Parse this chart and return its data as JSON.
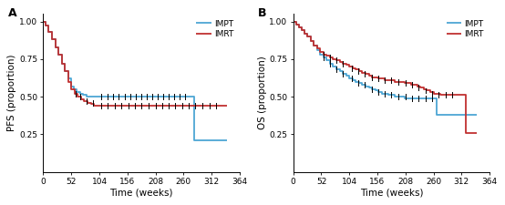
{
  "panel_A": {
    "title": "A",
    "ylabel": "PFS (proportion)",
    "xlabel": "Time (weeks)",
    "xlim": [
      0,
      364
    ],
    "ylim": [
      0.0,
      1.05
    ],
    "yticks": [
      0.25,
      0.5,
      0.75,
      1.0
    ],
    "xticks": [
      0,
      52,
      104,
      156,
      208,
      260,
      312,
      364
    ],
    "IMPT": {
      "color": "#4DA6D4",
      "steps_x": [
        0,
        5,
        10,
        16,
        22,
        28,
        34,
        40,
        46,
        52,
        56,
        62,
        68,
        74,
        80,
        86,
        92,
        98,
        104,
        280,
        340
      ],
      "steps_y": [
        1.0,
        0.97,
        0.93,
        0.88,
        0.83,
        0.78,
        0.72,
        0.67,
        0.62,
        0.57,
        0.55,
        0.53,
        0.52,
        0.51,
        0.5,
        0.5,
        0.5,
        0.5,
        0.5,
        0.21,
        0.21
      ],
      "censors_x": [
        108,
        120,
        130,
        140,
        152,
        162,
        172,
        182,
        192,
        202,
        212,
        222,
        232,
        242,
        252,
        262
      ],
      "censors_y": [
        0.5,
        0.5,
        0.5,
        0.5,
        0.5,
        0.5,
        0.5,
        0.5,
        0.5,
        0.5,
        0.5,
        0.5,
        0.5,
        0.5,
        0.5,
        0.5
      ]
    },
    "IMRT": {
      "color": "#C03030",
      "steps_x": [
        0,
        5,
        10,
        16,
        22,
        28,
        34,
        40,
        46,
        52,
        58,
        64,
        70,
        76,
        82,
        88,
        94,
        100,
        106,
        340
      ],
      "steps_y": [
        1.0,
        0.97,
        0.93,
        0.88,
        0.83,
        0.78,
        0.72,
        0.67,
        0.6,
        0.55,
        0.52,
        0.5,
        0.48,
        0.47,
        0.46,
        0.45,
        0.44,
        0.44,
        0.44,
        0.44
      ],
      "censors_x": [
        60,
        68,
        80,
        92,
        108,
        120,
        132,
        145,
        158,
        170,
        182,
        195,
        208,
        220,
        232,
        245,
        258,
        270,
        282,
        295,
        308,
        320
      ],
      "censors_y": [
        0.52,
        0.5,
        0.47,
        0.46,
        0.44,
        0.44,
        0.44,
        0.44,
        0.44,
        0.44,
        0.44,
        0.44,
        0.44,
        0.44,
        0.44,
        0.44,
        0.44,
        0.44,
        0.44,
        0.44,
        0.44,
        0.44
      ]
    }
  },
  "panel_B": {
    "title": "B",
    "ylabel": "OS (proportion)",
    "xlabel": "Time (weeks)",
    "xlim": [
      0,
      364
    ],
    "ylim": [
      0.0,
      1.05
    ],
    "yticks": [
      0.25,
      0.5,
      0.75,
      1.0
    ],
    "xticks": [
      0,
      52,
      104,
      156,
      208,
      260,
      312,
      364
    ],
    "IMPT": {
      "color": "#4DA6D4",
      "steps_x": [
        0,
        5,
        10,
        15,
        20,
        26,
        32,
        38,
        44,
        50,
        56,
        62,
        68,
        74,
        80,
        86,
        92,
        98,
        104,
        110,
        116,
        122,
        128,
        134,
        140,
        146,
        152,
        158,
        164,
        170,
        176,
        182,
        188,
        194,
        200,
        206,
        212,
        218,
        224,
        230,
        236,
        242,
        248,
        254,
        260,
        266,
        272,
        340
      ],
      "steps_y": [
        1.0,
        0.98,
        0.96,
        0.94,
        0.92,
        0.9,
        0.87,
        0.84,
        0.81,
        0.78,
        0.76,
        0.74,
        0.72,
        0.7,
        0.68,
        0.67,
        0.65,
        0.64,
        0.62,
        0.61,
        0.6,
        0.59,
        0.58,
        0.57,
        0.56,
        0.55,
        0.54,
        0.53,
        0.52,
        0.52,
        0.51,
        0.51,
        0.5,
        0.5,
        0.5,
        0.49,
        0.49,
        0.49,
        0.49,
        0.49,
        0.49,
        0.49,
        0.49,
        0.49,
        0.49,
        0.38,
        0.38,
        0.38
      ],
      "censors_x": [
        56,
        68,
        80,
        92,
        108,
        120,
        132,
        145,
        158,
        170,
        182,
        195,
        208,
        220,
        232,
        245,
        258
      ],
      "censors_y": [
        0.76,
        0.72,
        0.68,
        0.65,
        0.62,
        0.59,
        0.58,
        0.55,
        0.53,
        0.52,
        0.51,
        0.5,
        0.5,
        0.49,
        0.49,
        0.49,
        0.49
      ]
    },
    "IMRT": {
      "color": "#C03030",
      "steps_x": [
        0,
        5,
        10,
        15,
        20,
        26,
        32,
        38,
        44,
        50,
        56,
        62,
        68,
        74,
        80,
        86,
        92,
        98,
        104,
        110,
        116,
        122,
        128,
        134,
        140,
        146,
        152,
        158,
        164,
        170,
        176,
        182,
        188,
        194,
        200,
        206,
        212,
        218,
        224,
        230,
        236,
        242,
        248,
        254,
        260,
        266,
        272,
        278,
        284,
        290,
        296,
        302,
        308,
        314,
        320,
        340
      ],
      "steps_y": [
        1.0,
        0.98,
        0.96,
        0.94,
        0.92,
        0.9,
        0.87,
        0.84,
        0.82,
        0.8,
        0.78,
        0.77,
        0.76,
        0.75,
        0.74,
        0.73,
        0.72,
        0.71,
        0.7,
        0.69,
        0.68,
        0.67,
        0.66,
        0.65,
        0.64,
        0.63,
        0.63,
        0.62,
        0.62,
        0.61,
        0.61,
        0.61,
        0.6,
        0.6,
        0.6,
        0.59,
        0.59,
        0.58,
        0.58,
        0.57,
        0.56,
        0.55,
        0.54,
        0.53,
        0.52,
        0.52,
        0.51,
        0.51,
        0.51,
        0.51,
        0.51,
        0.51,
        0.51,
        0.51,
        0.26,
        0.26
      ],
      "censors_x": [
        56,
        68,
        80,
        92,
        108,
        120,
        132,
        145,
        158,
        170,
        182,
        195,
        208,
        220,
        232,
        245,
        258,
        270,
        282,
        295
      ],
      "censors_y": [
        0.78,
        0.76,
        0.74,
        0.72,
        0.69,
        0.67,
        0.65,
        0.63,
        0.62,
        0.61,
        0.61,
        0.6,
        0.59,
        0.58,
        0.56,
        0.54,
        0.52,
        0.51,
        0.51,
        0.51
      ]
    }
  },
  "line_width": 1.3,
  "legend_fontsize": 6.5,
  "tick_fontsize": 6.5,
  "label_fontsize": 7.5,
  "panel_label_fontsize": 9
}
